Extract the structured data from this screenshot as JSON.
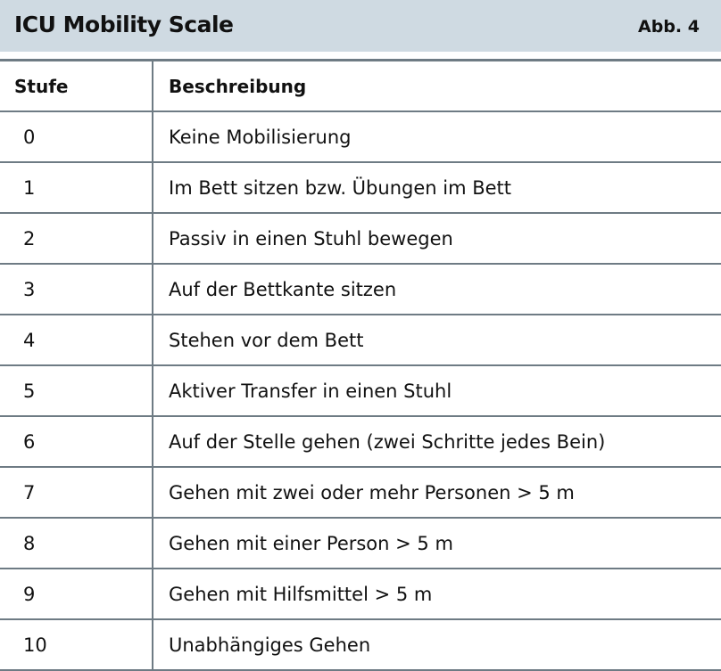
{
  "header": {
    "title": "ICU Mobility Scale",
    "figure_label": "Abb. 4"
  },
  "table": {
    "columns": [
      "Stufe",
      "Beschreibung"
    ],
    "rows": [
      [
        "0",
        "Keine Mobilisierung"
      ],
      [
        "1",
        "Im Bett sitzen bzw. Übungen im Bett"
      ],
      [
        "2",
        "Passiv in einen Stuhl bewegen"
      ],
      [
        "3",
        "Auf der Bettkante sitzen"
      ],
      [
        "4",
        "Stehen vor dem Bett"
      ],
      [
        "5",
        "Aktiver Transfer in einen Stuhl"
      ],
      [
        "6",
        "Auf der Stelle gehen (zwei Schritte jedes Bein)"
      ],
      [
        "7",
        "Gehen mit zwei oder mehr Personen > 5 m"
      ],
      [
        "8",
        "Gehen mit einer Person > 5 m"
      ],
      [
        "9",
        "Gehen mit Hilfsmittel > 5 m"
      ],
      [
        "10",
        "Unabhängiges Gehen"
      ]
    ]
  },
  "colors": {
    "header_band": "#cfdae2",
    "rule": "#6e7b84"
  }
}
